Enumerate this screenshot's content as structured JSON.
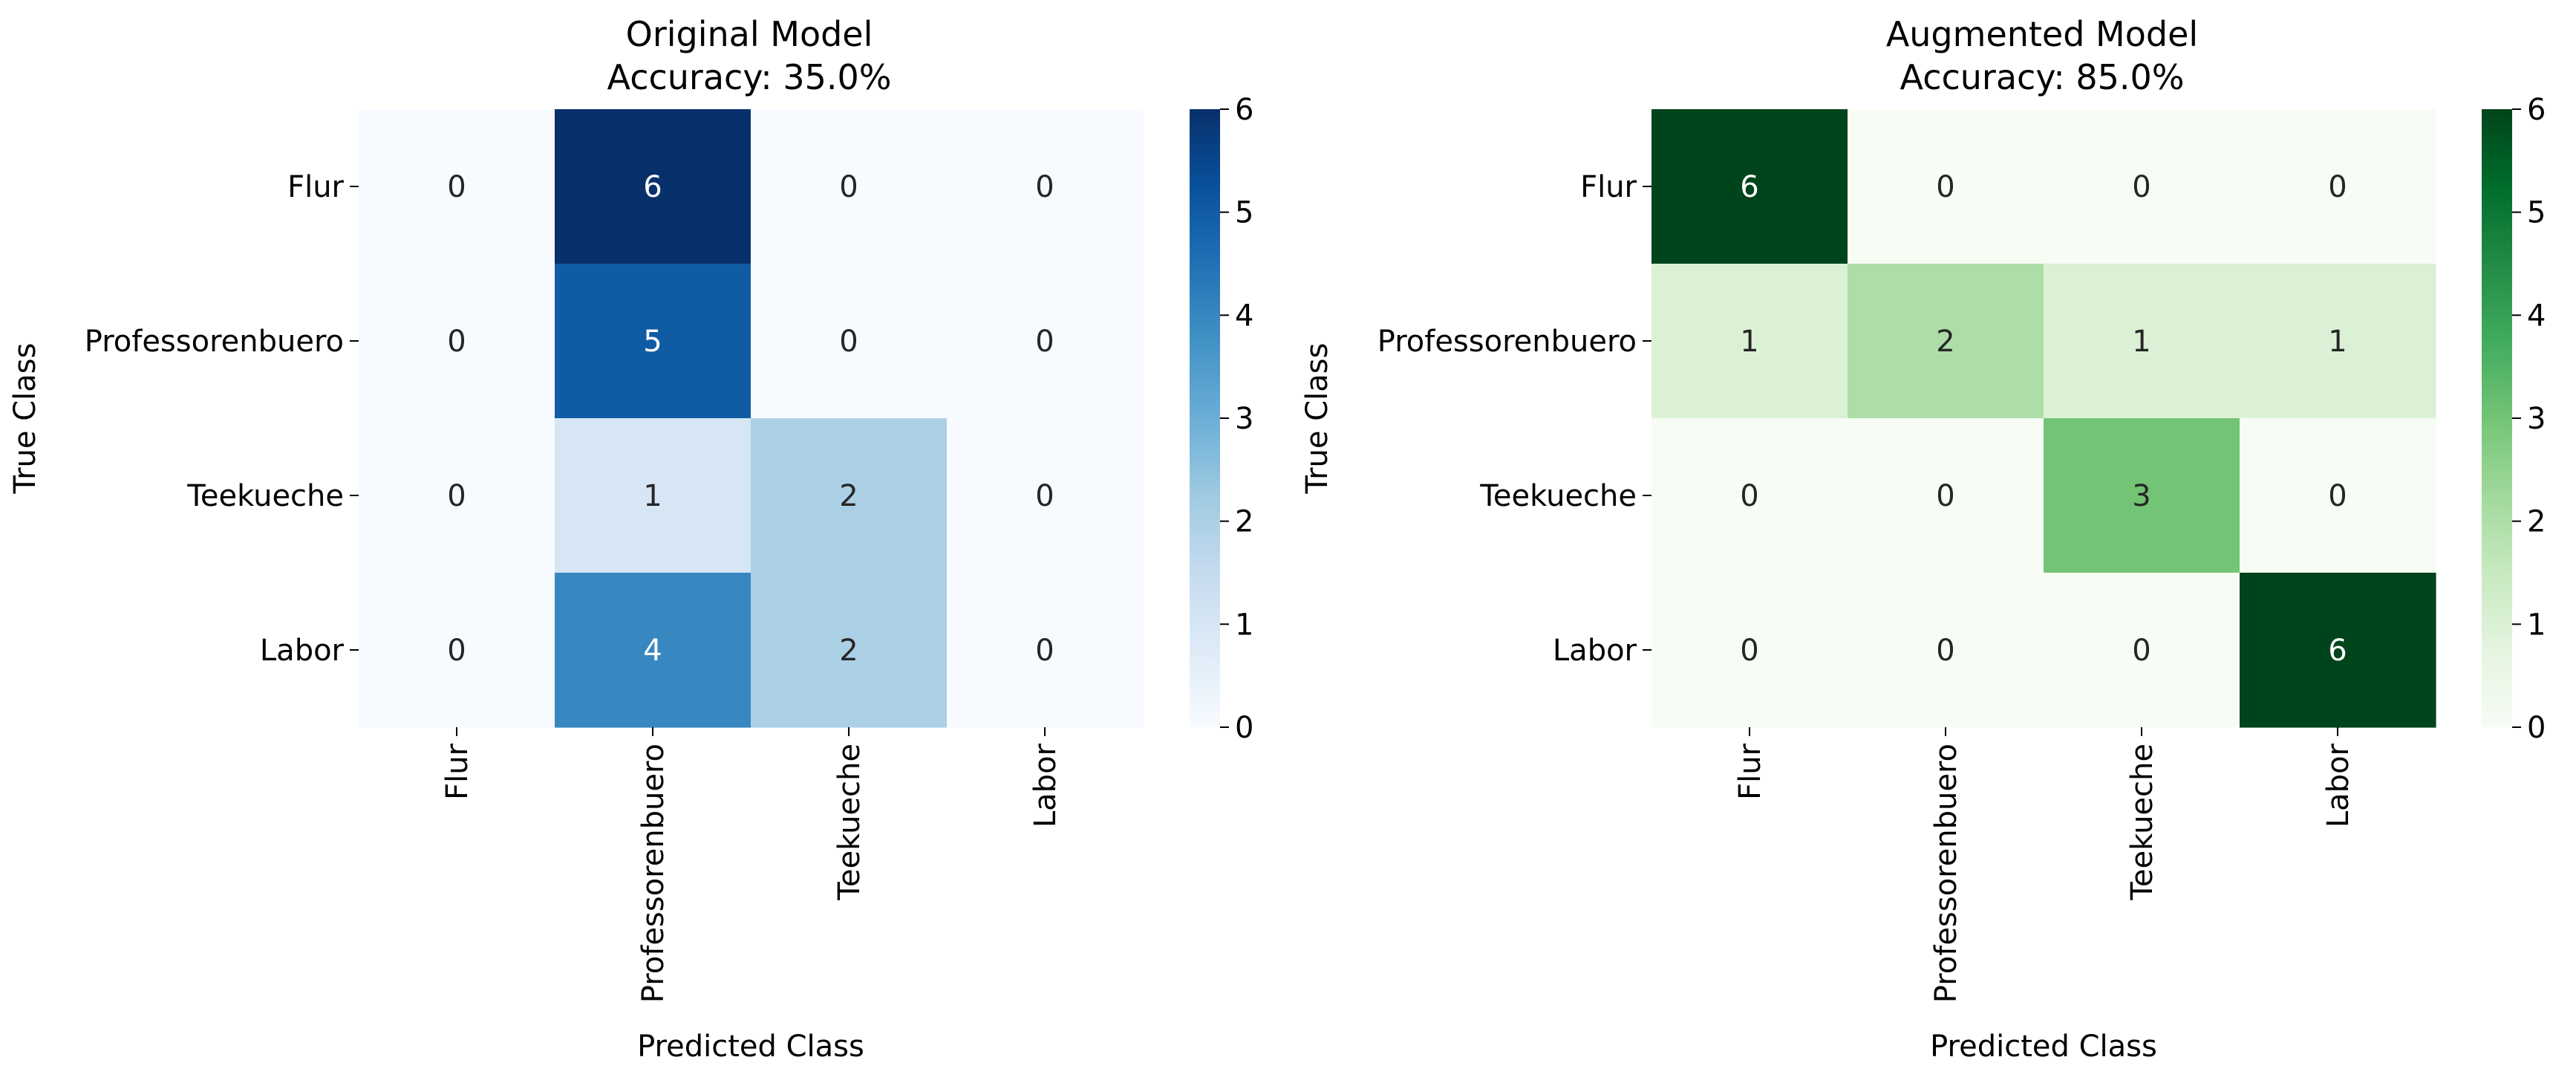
{
  "chart_data": [
    {
      "type": "heatmap",
      "title_line1": "Original Model",
      "title_line2": "Accuracy: 35.0%",
      "xlabel": "Predicted Class",
      "ylabel": "True Class",
      "x_categories": [
        "Flur",
        "Professorenbuero",
        "Teekueche",
        "Labor"
      ],
      "y_categories": [
        "Flur",
        "Professorenbuero",
        "Teekueche",
        "Labor"
      ],
      "values": [
        [
          0,
          6,
          0,
          0
        ],
        [
          0,
          5,
          0,
          0
        ],
        [
          0,
          1,
          2,
          0
        ],
        [
          0,
          4,
          2,
          0
        ]
      ],
      "colormap": "Blues",
      "vmin": 0,
      "vmax": 6,
      "colorbar_ticks": [
        "0",
        "1",
        "2",
        "3",
        "4",
        "5",
        "6"
      ]
    },
    {
      "type": "heatmap",
      "title_line1": "Augmented Model",
      "title_line2": "Accuracy: 85.0%",
      "xlabel": "Predicted Class",
      "ylabel": "True Class",
      "x_categories": [
        "Flur",
        "Professorenbuero",
        "Teekueche",
        "Labor"
      ],
      "y_categories": [
        "Flur",
        "Professorenbuero",
        "Teekueche",
        "Labor"
      ],
      "values": [
        [
          6,
          0,
          0,
          0
        ],
        [
          1,
          2,
          1,
          1
        ],
        [
          0,
          0,
          3,
          0
        ],
        [
          0,
          0,
          0,
          6
        ]
      ],
      "colormap": "Greens",
      "vmin": 0,
      "vmax": 6,
      "colorbar_ticks": [
        "0",
        "1",
        "2",
        "3",
        "4",
        "5",
        "6"
      ]
    }
  ],
  "colors": {
    "blues": [
      "#f7fbff",
      "#deebf7",
      "#c6dbef",
      "#9ecae1",
      "#6baed6",
      "#4292c6",
      "#2171b5",
      "#08519c",
      "#08306b"
    ],
    "greens": [
      "#f7fcf5",
      "#e5f5e0",
      "#c7e9c0",
      "#a1d99b",
      "#74c476",
      "#41ab5d",
      "#238b45",
      "#006d2c",
      "#00441b"
    ],
    "text_dark": "#262626",
    "text_light": "#ffffff",
    "axis": "#000000"
  }
}
